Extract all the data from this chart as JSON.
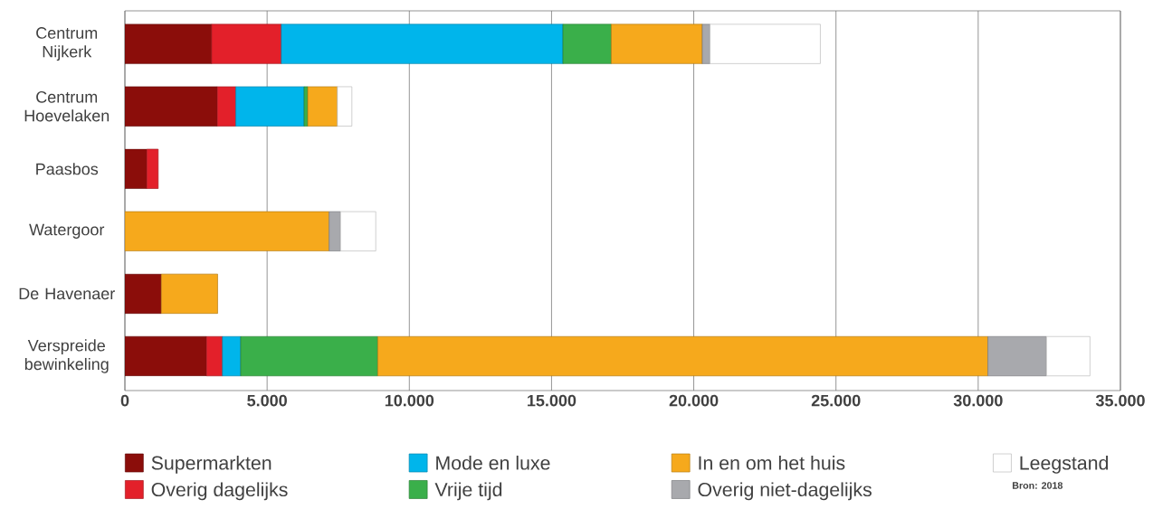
{
  "chart_data": {
    "type": "bar",
    "orientation": "horizontal",
    "stacked": true,
    "categories": [
      "Centrum Nijkerk",
      "Centrum Hoevelaken",
      "Paasbos",
      "Watergoor",
      "De Havenaer",
      "Verspreide bewinkeling"
    ],
    "series": [
      {
        "name": "Supermarkten",
        "color": "#8b0d0a",
        "values": [
          3050,
          3250,
          770,
          null,
          1280,
          2870
        ]
      },
      {
        "name": "Overig dagelijks",
        "color": "#e3202a",
        "values": [
          2450,
          650,
          400,
          null,
          null,
          560
        ]
      },
      {
        "name": "Mode en luxe",
        "color": "#00b5eb",
        "values": [
          9900,
          2400,
          null,
          null,
          null,
          640
        ]
      },
      {
        "name": "Vrije tijd",
        "color": "#3aaf4a",
        "values": [
          1700,
          130,
          null,
          null,
          null,
          4820
        ]
      },
      {
        "name": "In en om het huis",
        "color": "#f6a91c",
        "values": [
          3200,
          1040,
          null,
          7180,
          1980,
          21450
        ]
      },
      {
        "name": "Overig niet-dagelijks",
        "color": "#a8a9ad",
        "values": [
          270,
          null,
          null,
          400,
          null,
          2060
        ]
      },
      {
        "name": "Leegstand",
        "color": "#ffffff",
        "values": [
          3880,
          510,
          null,
          1240,
          null,
          1530
        ]
      }
    ],
    "xlim": [
      0,
      35000
    ],
    "xticks": [
      0,
      {
        "value": 5000,
        "label": "5.000"
      },
      {
        "value": 10000,
        "label": "10.000"
      },
      {
        "value": 15000,
        "label": "15.000"
      },
      {
        "value": 20000,
        "label": "20.000"
      },
      {
        "value": 25000,
        "label": "25.000"
      },
      {
        "value": 30000,
        "label": "30.000"
      },
      {
        "value": 35000,
        "label": "35.000"
      }
    ],
    "grid": "x",
    "legend": "bottom",
    "annotations": [
      "Bron: 2018"
    ]
  }
}
